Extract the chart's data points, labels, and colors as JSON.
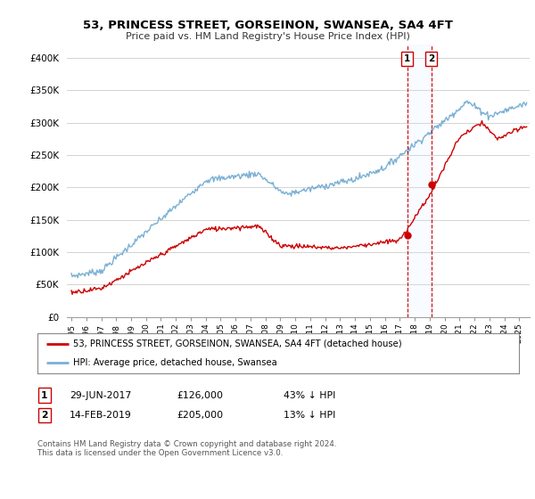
{
  "title": "53, PRINCESS STREET, GORSEINON, SWANSEA, SA4 4FT",
  "subtitle": "Price paid vs. HM Land Registry's House Price Index (HPI)",
  "ylim": [
    0,
    420000
  ],
  "yticks": [
    0,
    50000,
    100000,
    150000,
    200000,
    250000,
    300000,
    350000,
    400000
  ],
  "ytick_labels": [
    "£0",
    "£50K",
    "£100K",
    "£150K",
    "£200K",
    "£250K",
    "£300K",
    "£350K",
    "£400K"
  ],
  "sale1_date_num": 2017.5,
  "sale1_price": 126000,
  "sale2_date_num": 2019.12,
  "sale2_price": 205000,
  "legend_line1": "53, PRINCESS STREET, GORSEINON, SWANSEA, SA4 4FT (detached house)",
  "legend_line2": "HPI: Average price, detached house, Swansea",
  "table_row1": [
    "1",
    "29-JUN-2017",
    "£126,000",
    "43% ↓ HPI"
  ],
  "table_row2": [
    "2",
    "14-FEB-2019",
    "£205,000",
    "13% ↓ HPI"
  ],
  "footnote": "Contains HM Land Registry data © Crown copyright and database right 2024.\nThis data is licensed under the Open Government Licence v3.0.",
  "price_color": "#cc0000",
  "hpi_color": "#7ab0d4",
  "vline_color": "#cc0000",
  "shade_color": "#ddeeff",
  "background_color": "#ffffff",
  "grid_color": "#cccccc"
}
